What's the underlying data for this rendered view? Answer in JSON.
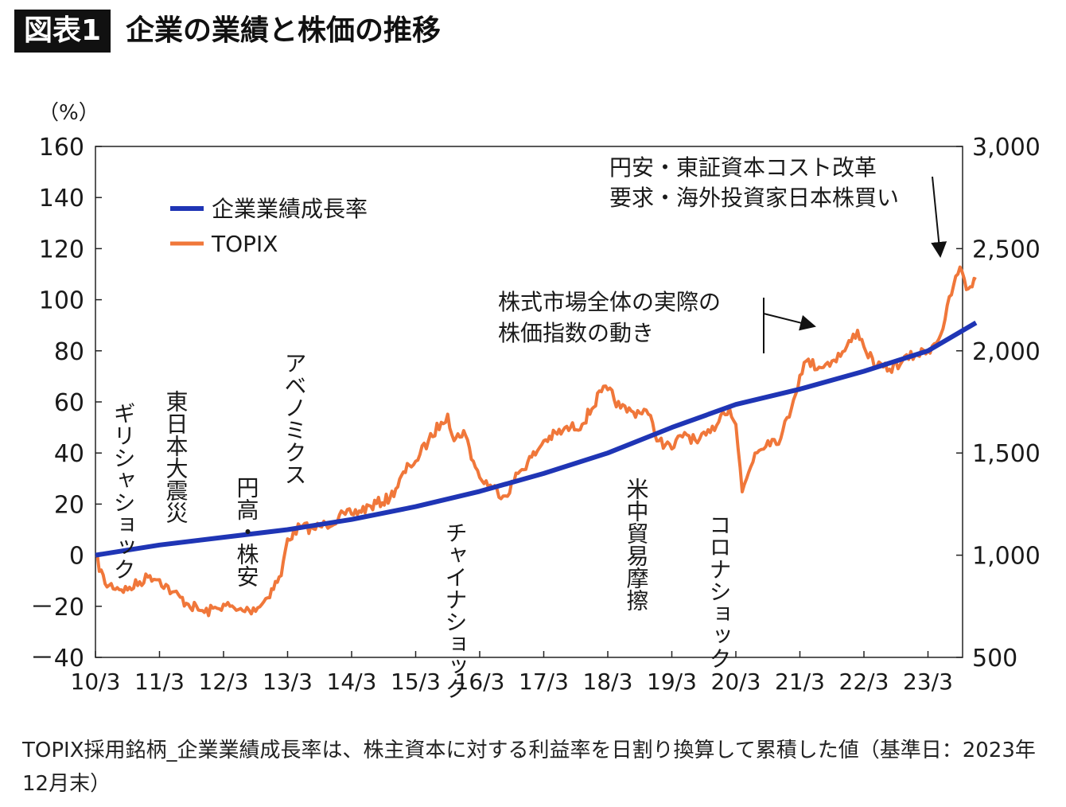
{
  "header": {
    "badge": "図表1",
    "title": "企業の業績と株価の推移"
  },
  "chart_data": {
    "type": "line",
    "left_axis_unit": "（%）",
    "y_left_ticks": [
      160,
      140,
      120,
      100,
      80,
      60,
      40,
      20,
      0,
      -20,
      -40
    ],
    "y_left_tick_labels": [
      "160",
      "140",
      "120",
      "100",
      "80",
      "60",
      "40",
      "20",
      "0",
      "－20",
      "－40"
    ],
    "ylim_left": [
      -40,
      160
    ],
    "y_right_ticks": [
      3000,
      2500,
      2000,
      1500,
      1000,
      500
    ],
    "y_right_tick_labels": [
      "3,000",
      "2,500",
      "2,000",
      "1,500",
      "1,000",
      "500"
    ],
    "ylim_right": [
      500,
      3000
    ],
    "x_ticks": [
      "10/3",
      "11/3",
      "12/3",
      "13/3",
      "14/3",
      "15/3",
      "16/3",
      "17/3",
      "18/3",
      "19/3",
      "20/3",
      "21/3",
      "22/3",
      "23/3"
    ],
    "xlim": [
      2010.0,
      2023.75
    ],
    "legend": {
      "placement": "top-left",
      "entries": [
        "企業業績成長率",
        "TOPIX"
      ]
    },
    "series": [
      {
        "name": "企業業績成長率",
        "axis": "left",
        "color": "#1f35b5",
        "x": [
          2010.0,
          2011.0,
          2012.0,
          2013.0,
          2014.0,
          2015.0,
          2016.0,
          2017.0,
          2018.0,
          2019.0,
          2020.0,
          2021.0,
          2022.0,
          2023.0,
          2023.75
        ],
        "y": [
          0,
          4,
          7,
          10,
          14,
          19,
          25,
          32,
          40,
          50,
          59,
          65,
          72,
          80,
          91
        ]
      },
      {
        "name": "TOPIX",
        "axis": "right",
        "color": "#f0773a",
        "x": [
          2010.0,
          2010.15,
          2010.5,
          2010.85,
          2011.0,
          2011.2,
          2011.45,
          2011.7,
          2011.9,
          2012.0,
          2012.2,
          2012.4,
          2012.6,
          2012.9,
          2013.0,
          2013.2,
          2013.4,
          2013.6,
          2013.9,
          2014.0,
          2014.3,
          2014.6,
          2014.9,
          2015.0,
          2015.2,
          2015.4,
          2015.5,
          2015.6,
          2015.75,
          2015.9,
          2016.0,
          2016.2,
          2016.4,
          2016.6,
          2016.9,
          2017.0,
          2017.3,
          2017.6,
          2017.9,
          2018.0,
          2018.2,
          2018.4,
          2018.6,
          2018.8,
          2019.0,
          2019.2,
          2019.4,
          2019.6,
          2019.8,
          2019.9,
          2020.0,
          2020.1,
          2020.3,
          2020.5,
          2020.7,
          2020.9,
          2021.0,
          2021.1,
          2021.3,
          2021.5,
          2021.7,
          2021.9,
          2022.0,
          2022.2,
          2022.4,
          2022.6,
          2022.8,
          2023.0,
          2023.2,
          2023.4,
          2023.5,
          2023.6,
          2023.75
        ],
        "y": [
          1000,
          860,
          830,
          900,
          880,
          820,
          760,
          720,
          740,
          760,
          730,
          730,
          760,
          900,
          1080,
          1140,
          1130,
          1150,
          1200,
          1200,
          1240,
          1280,
          1440,
          1460,
          1560,
          1650,
          1690,
          1560,
          1610,
          1460,
          1380,
          1330,
          1290,
          1400,
          1510,
          1560,
          1610,
          1640,
          1800,
          1810,
          1720,
          1700,
          1710,
          1560,
          1520,
          1600,
          1550,
          1600,
          1700,
          1720,
          1640,
          1310,
          1500,
          1560,
          1570,
          1760,
          1880,
          1950,
          1920,
          1950,
          2000,
          2100,
          2020,
          1920,
          1910,
          1950,
          1980,
          2000,
          2080,
          2320,
          2410,
          2300,
          2350
        ]
      }
    ],
    "event_labels": [
      "ギリシャショック",
      "東日本大震災",
      "円高・株安",
      "アベノミクス",
      "チャイナショック",
      "米中貿易摩擦",
      "コロナショック"
    ],
    "annotations": {
      "market_index": [
        "株式市場全体の実際の",
        "株価指数の動き"
      ],
      "yen": [
        "円安・東証資本コスト改革",
        "要求・海外投資家日本株買い"
      ]
    }
  },
  "footnote": "TOPIX採用銘柄_企業業績成長率は、株主資本に対する利益率を日割り換算して累積した値（基準日：2023年12月末）"
}
